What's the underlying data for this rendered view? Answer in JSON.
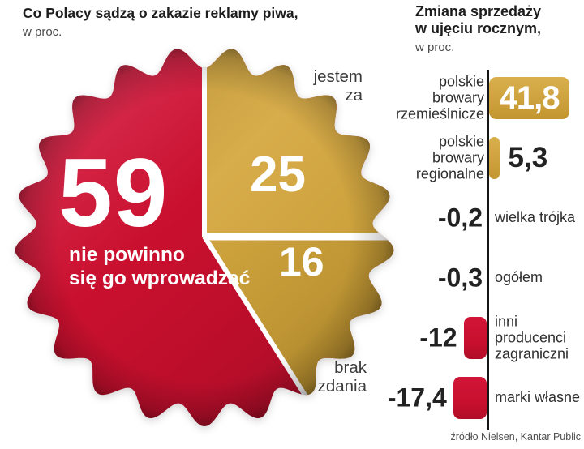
{
  "chart_data": [
    {
      "type": "pie",
      "style": "bottle-cap",
      "title": "Co Polacy sądzą o zakazie reklamy piwa,",
      "subtitle": "w proc.",
      "slices": [
        {
          "label": "nie powinno\nsię go wprowadzać",
          "value": 59,
          "color": "#c8102e",
          "label_placement": "inside"
        },
        {
          "label": "jestem za",
          "value": 25,
          "color": "#d0a53f",
          "label_placement": "outside"
        },
        {
          "label": "brak zdania",
          "value": 16,
          "color": "#c09434",
          "label_placement": "outside"
        }
      ],
      "divider_color": "#ffffff",
      "value_color": "#ffffff",
      "start_angle_deg": 0,
      "direction": "clockwise",
      "order": [
        "jestem za",
        "brak zdania",
        "nie powinno się go wprowadzać"
      ]
    },
    {
      "type": "bar",
      "orientation": "horizontal",
      "title": "Zmiana sprzedaży w ujęciu rocznym,",
      "subtitle": "w proc.",
      "categories": [
        "polskie browary rzemieślnicze",
        "polskie browary regionalne",
        "wielka trójka",
        "ogółem",
        "inni producenci zagraniczni",
        "marki własne"
      ],
      "values": [
        41.8,
        5.3,
        -0.2,
        -0.3,
        -12,
        -17.4
      ],
      "value_labels": [
        "41,8",
        "5,3",
        "-0,2",
        "-0,3",
        "-12",
        "-17,4"
      ],
      "bar_colors": {
        "positive": "#cda23e",
        "negative": "#c8102e"
      },
      "axis": {
        "baseline": 0,
        "line_color": "#161616"
      },
      "grid": false,
      "legend": "none"
    }
  ],
  "source": "źródło Nielsen, Kantar Public"
}
